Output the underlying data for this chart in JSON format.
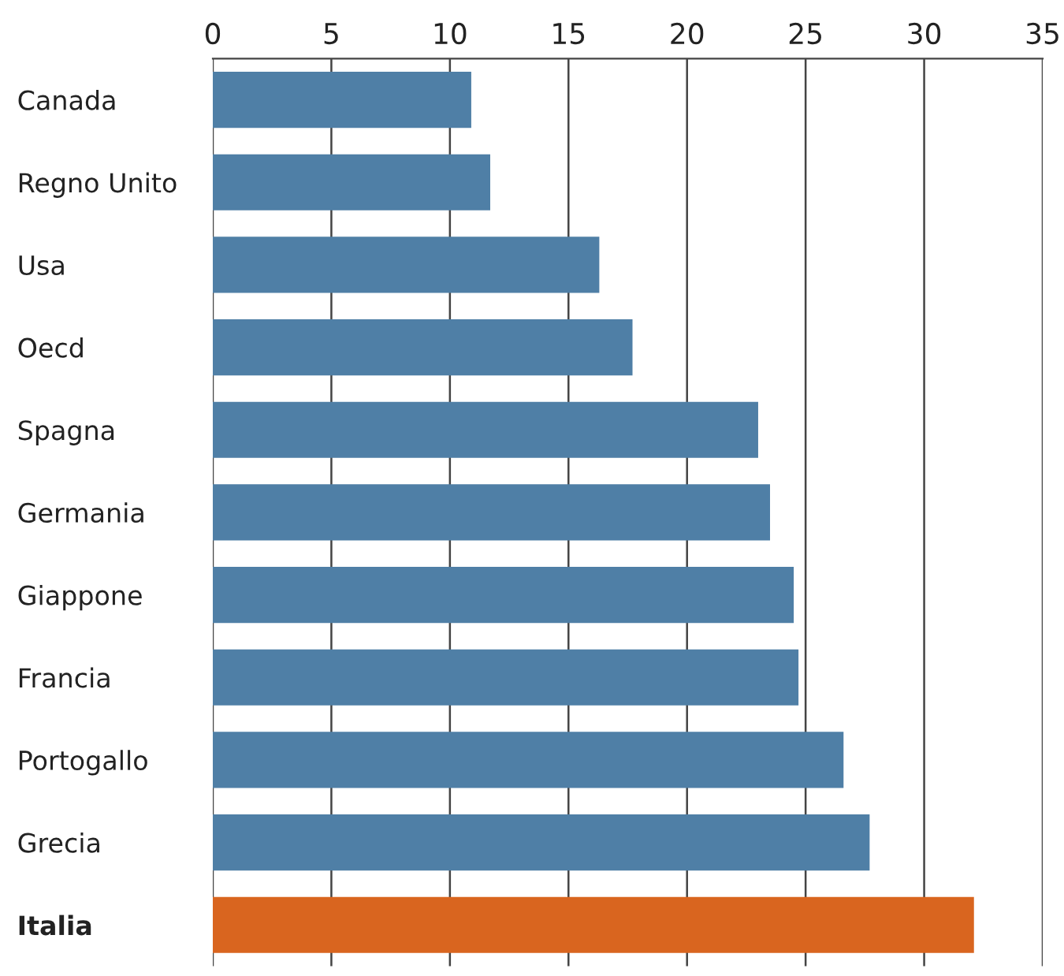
{
  "chart_data": {
    "type": "bar",
    "orientation": "horizontal",
    "categories": [
      "Canada",
      "Regno Unito",
      "Usa",
      "Oecd",
      "Spagna",
      "Germania",
      "Giappone",
      "Francia",
      "Portogallo",
      "Grecia",
      "Italia"
    ],
    "values": [
      10.9,
      11.7,
      16.3,
      17.7,
      23.0,
      23.5,
      24.5,
      24.7,
      26.6,
      27.7,
      32.1
    ],
    "colors": [
      "#4f7fa6",
      "#4f7fa6",
      "#4f7fa6",
      "#4f7fa6",
      "#4f7fa6",
      "#4f7fa6",
      "#4f7fa6",
      "#4f7fa6",
      "#4f7fa6",
      "#4f7fa6",
      "#d9651f"
    ],
    "xlim": [
      0,
      35
    ],
    "xticks": [
      0,
      5,
      10,
      15,
      20,
      25,
      30,
      35
    ],
    "grid": "x"
  }
}
